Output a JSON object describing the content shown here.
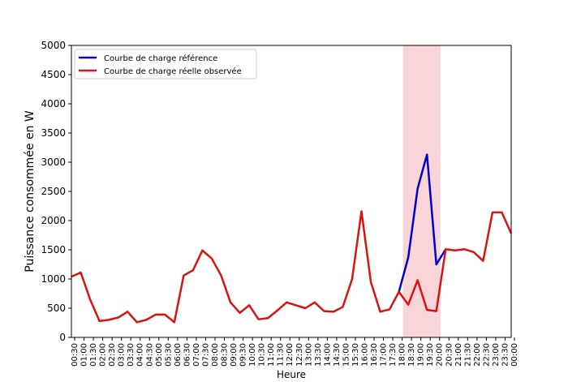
{
  "chart_data": {
    "type": "line",
    "xlabel": "Heure",
    "ylabel": "Puissance consommée en W",
    "categories": [
      "00:30",
      "01:00",
      "01:30",
      "02:00",
      "02:30",
      "03:00",
      "03:30",
      "04:00",
      "04:30",
      "05:00",
      "05:30",
      "06:00",
      "06:30",
      "07:00",
      "07:30",
      "08:00",
      "08:30",
      "09:00",
      "09:30",
      "10:00",
      "10:30",
      "11:00",
      "11:30",
      "12:00",
      "12:30",
      "13:00",
      "13:30",
      "14:00",
      "14:30",
      "15:00",
      "15:30",
      "16:00",
      "16:30",
      "17:00",
      "17:30",
      "18:00",
      "18:30",
      "19:00",
      "19:30",
      "20:00",
      "20:30",
      "21:00",
      "21:30",
      "22:00",
      "22:30",
      "23:00",
      "23:30",
      "00:00"
    ],
    "series": [
      {
        "name": "Courbe de charge référence",
        "color": "#0000cc",
        "values": [
          null,
          null,
          null,
          null,
          null,
          null,
          null,
          null,
          null,
          null,
          null,
          null,
          null,
          null,
          null,
          null,
          null,
          null,
          null,
          null,
          null,
          null,
          null,
          null,
          null,
          null,
          null,
          null,
          null,
          null,
          null,
          null,
          null,
          null,
          null,
          780,
          1370,
          2550,
          3130,
          1250,
          1510,
          null,
          null,
          null,
          null,
          null,
          null,
          null
        ]
      },
      {
        "name": "Courbe de charge réelle observée",
        "color": "#dd1111",
        "values": [
          1040,
          1110,
          650,
          280,
          300,
          340,
          440,
          260,
          300,
          390,
          390,
          260,
          1060,
          1150,
          1490,
          1350,
          1060,
          600,
          420,
          550,
          310,
          330,
          460,
          600,
          550,
          500,
          600,
          450,
          440,
          520,
          1000,
          2160,
          950,
          440,
          480,
          780,
          560,
          980,
          470,
          450,
          1510,
          1490,
          1510,
          1460,
          1310,
          2140,
          2140,
          1780
        ]
      }
    ],
    "highlight": {
      "from": "18:00",
      "to": "20:00",
      "color": "#f9d4d8"
    },
    "ylim": [
      0,
      5000
    ],
    "yticks": [
      0,
      500,
      1000,
      1500,
      2000,
      2500,
      3000,
      3500,
      4000,
      4500,
      5000
    ],
    "legend": "upper left"
  }
}
